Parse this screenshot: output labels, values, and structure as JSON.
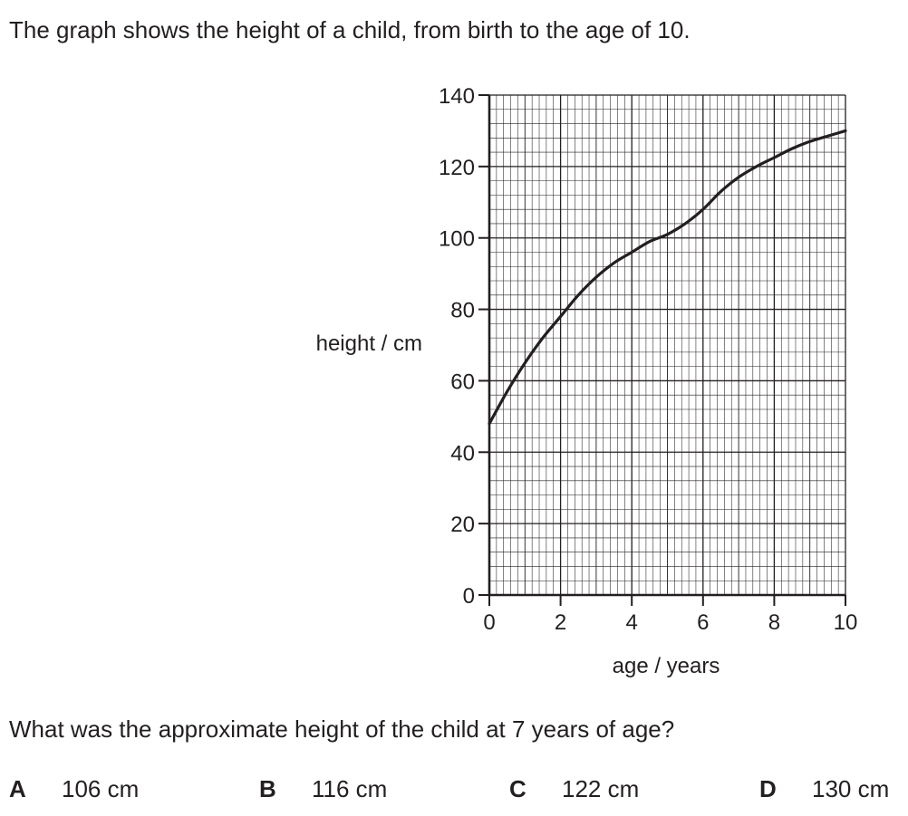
{
  "intro_text": "The graph shows the height of a child, from birth to the age of 10.",
  "question_text": "What was the approximate height of the child at 7 years of age?",
  "options": [
    {
      "letter": "A",
      "value": "106 cm"
    },
    {
      "letter": "B",
      "value": "116 cm"
    },
    {
      "letter": "C",
      "value": "122 cm"
    },
    {
      "letter": "D",
      "value": "130 cm"
    }
  ],
  "chart_data": {
    "type": "line",
    "title": "",
    "xlabel": "age / years",
    "ylabel": "height / cm",
    "xlim": [
      0,
      10
    ],
    "ylim": [
      0,
      140
    ],
    "x_ticks": [
      "0",
      "2",
      "4",
      "6",
      "8",
      "10"
    ],
    "y_ticks": [
      "0",
      "20",
      "40",
      "60",
      "80",
      "100",
      "120",
      "140"
    ],
    "grid": true,
    "series": [
      {
        "x": [
          0,
          0.5,
          1,
          1.5,
          2,
          2.5,
          3,
          3.5,
          4,
          4.5,
          5,
          5.5,
          6,
          6.5,
          7,
          7.5,
          8,
          8.5,
          9,
          9.5,
          10
        ],
        "y": [
          48,
          57,
          65,
          72,
          78,
          84,
          89,
          93,
          96,
          99,
          101,
          104,
          108,
          113,
          117,
          120,
          122.5,
          125,
          127,
          128.5,
          130
        ]
      }
    ],
    "colors": {
      "line": "#231f20",
      "grid": "#231f20"
    }
  }
}
